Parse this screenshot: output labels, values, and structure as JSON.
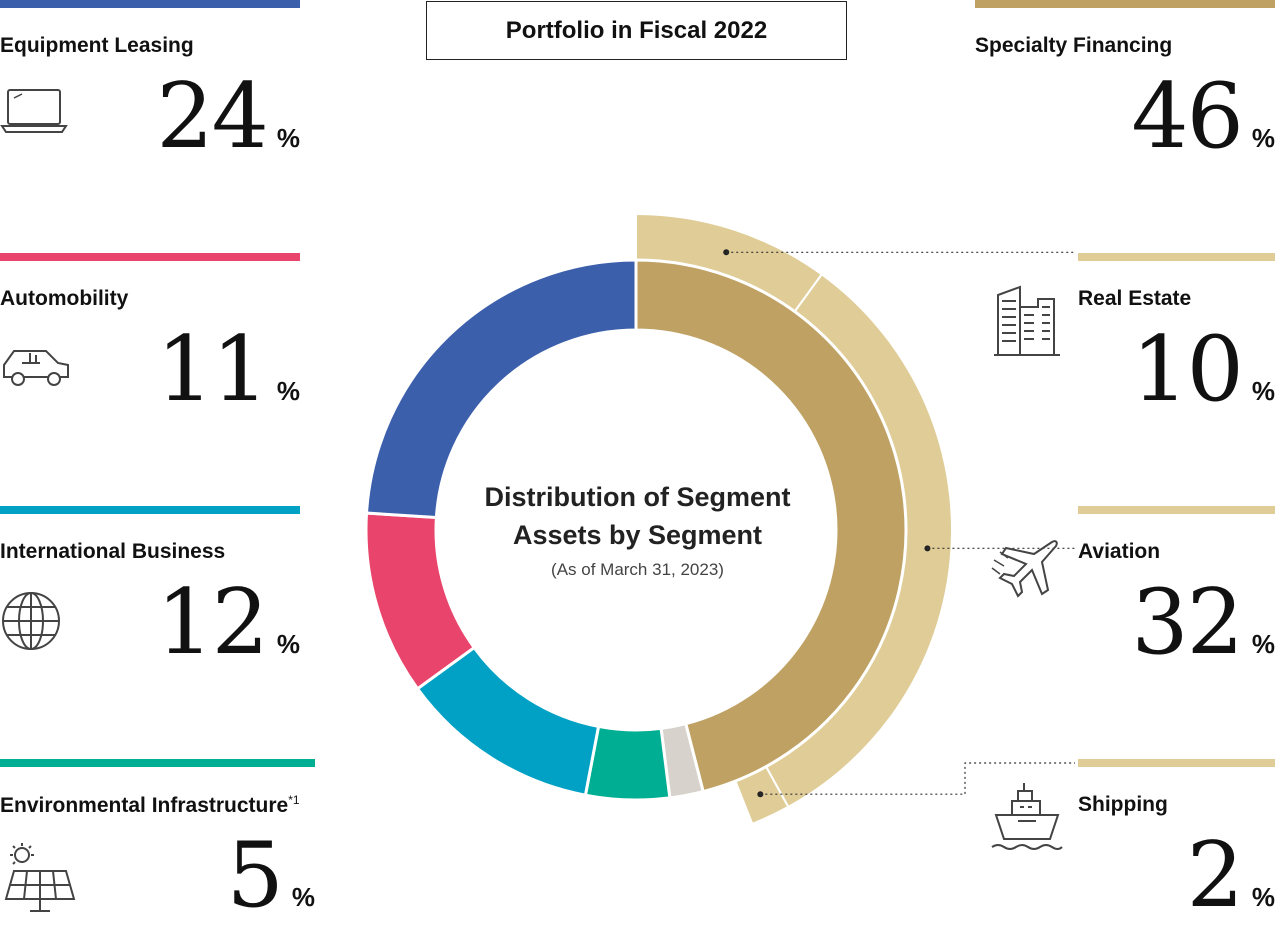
{
  "title": "Portfolio in Fiscal 2022",
  "chart_data": {
    "type": "pie",
    "title": "Distribution of Segment Assets by Segment",
    "subtitle": "(As of March 31, 2023)",
    "categories": [
      "Specialty Financing",
      "Shipping",
      "Environmental Infrastructure",
      "International Business",
      "Automobility",
      "Equipment Leasing"
    ],
    "values": [
      46,
      2,
      5,
      12,
      11,
      24
    ],
    "colors": [
      "#BFA263",
      "#D8D2CC",
      "#00AE93",
      "#00A1C4",
      "#E9456C",
      "#3C5FAB"
    ],
    "breakdown": {
      "parent": "Specialty Financing",
      "categories": [
        "Real Estate",
        "Aviation",
        "Shipping"
      ],
      "values": [
        10,
        32,
        2
      ],
      "colors": [
        "#DFCC97",
        "#DFCC97",
        "#DFCC97"
      ]
    }
  },
  "segments": [
    {
      "name": "Equipment Leasing",
      "value": "24",
      "unit": "%",
      "color": "#3C5FAB",
      "icon": "laptop-icon"
    },
    {
      "name": "Automobility",
      "value": "11",
      "unit": "%",
      "color": "#E9456C",
      "icon": "car-icon"
    },
    {
      "name": "International Business",
      "value": "12",
      "unit": "%",
      "color": "#00A1C4",
      "icon": "globe-icon"
    },
    {
      "name": "Environmental Infrastructure",
      "note": "*1",
      "value": "5",
      "unit": "%",
      "color": "#00AE93",
      "icon": "solar-panel-icon"
    },
    {
      "name": "Specialty Financing",
      "value": "46",
      "unit": "%",
      "color": "#BFA263"
    },
    {
      "name": "Real Estate",
      "value": "10",
      "unit": "%",
      "color": "#DFCC97",
      "icon": "buildings-icon"
    },
    {
      "name": "Aviation",
      "value": "32",
      "unit": "%",
      "color": "#DFCC97",
      "icon": "airplane-icon"
    },
    {
      "name": "Shipping",
      "value": "2",
      "unit": "%",
      "color": "#DFCC97",
      "icon": "ship-icon"
    }
  ]
}
